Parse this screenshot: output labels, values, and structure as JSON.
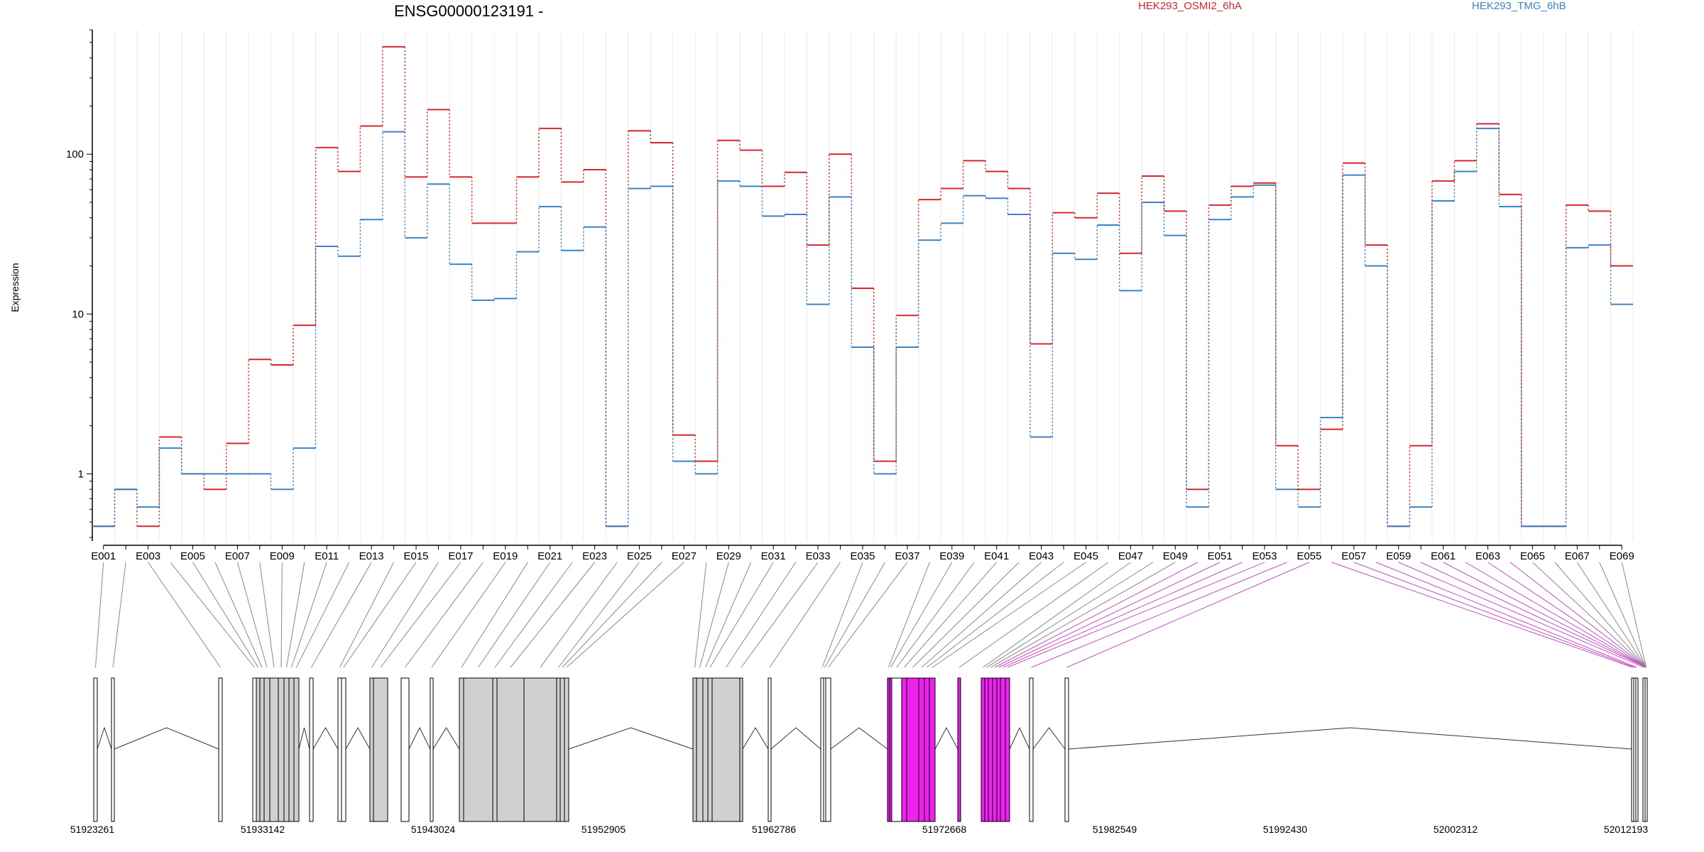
{
  "header": {
    "title": "ENSG00000123191 -",
    "legend": [
      {
        "label": "HEK293_OSMI2_6hA",
        "color": "#d7262b"
      },
      {
        "label": "HEK293_TMG_6hB",
        "color": "#3d82c4"
      }
    ]
  },
  "chart_data": {
    "type": "line",
    "title": "ENSG00000123191 -",
    "ylabel": "Expression",
    "yscale": "log",
    "ylim": [
      0.38,
      600
    ],
    "yticks": [
      1,
      10,
      100
    ],
    "ytick_labels": [
      "1",
      "10",
      "100"
    ],
    "grid": "vertical",
    "step": true,
    "categories": [
      "E001",
      "E002",
      "E003",
      "E004",
      "E005",
      "E006",
      "E007",
      "E008",
      "E009",
      "E010",
      "E011",
      "E012",
      "E013",
      "E014",
      "E015",
      "E016",
      "E017",
      "E018",
      "E019",
      "E020",
      "E021",
      "E022",
      "E023",
      "E024",
      "E025",
      "E026",
      "E027",
      "E028",
      "E029",
      "E030",
      "E031",
      "E032",
      "E033",
      "E034",
      "E035",
      "E036",
      "E037",
      "E038",
      "E039",
      "E040",
      "E041",
      "E042",
      "E043",
      "E044",
      "E045",
      "E046",
      "E047",
      "E048",
      "E049",
      "E050",
      "E051",
      "E052",
      "E053",
      "E054",
      "E055",
      "E056",
      "E057",
      "E058",
      "E059",
      "E060",
      "E061",
      "E062",
      "E063",
      "E064",
      "E065",
      "E066",
      "E067",
      "E068",
      "E069"
    ],
    "xtick_labels": [
      "E001",
      "E003",
      "E005",
      "E007",
      "E009",
      "E011",
      "E013",
      "E015",
      "E017",
      "E019",
      "E021",
      "E023",
      "E025",
      "E027",
      "E029",
      "E031",
      "E033",
      "E035",
      "E037",
      "E039",
      "E041",
      "E043",
      "E045",
      "E047",
      "E049",
      "E051",
      "E053",
      "E055",
      "E057",
      "E059",
      "E061",
      "E063",
      "E065",
      "E067",
      "E069"
    ],
    "series": [
      {
        "name": "HEK293_OSMI2_6hA",
        "color": "#d7262b",
        "values": [
          0.47,
          0.8,
          0.47,
          1.7,
          1.0,
          0.8,
          1.55,
          5.2,
          4.8,
          8.5,
          110,
          78,
          150,
          470,
          72,
          190,
          72,
          37,
          37,
          72,
          145,
          67,
          80,
          0.47,
          140,
          118,
          1.75,
          1.2,
          122,
          106,
          63,
          77,
          27,
          100,
          14.5,
          1.2,
          9.8,
          52,
          61,
          91,
          78,
          61,
          6.5,
          43,
          40,
          57,
          24,
          73,
          44,
          0.8,
          48,
          63,
          66,
          1.5,
          0.8,
          1.9,
          88,
          27,
          0.47,
          1.5,
          68,
          91,
          155,
          56,
          0.47,
          0.47,
          48,
          44,
          20
        ]
      },
      {
        "name": "HEK293_TMG_6hB",
        "color": "#3d82c4",
        "values": [
          0.47,
          0.8,
          0.62,
          1.45,
          1.0,
          1.0,
          1.0,
          1.0,
          0.8,
          1.45,
          26.5,
          23,
          39,
          138,
          30,
          65,
          20.5,
          12.2,
          12.5,
          24.5,
          47,
          25,
          35,
          0.47,
          61,
          63,
          1.2,
          1.0,
          68,
          63,
          41,
          42,
          11.5,
          54,
          6.2,
          1.0,
          6.2,
          29,
          37,
          55,
          53,
          42,
          1.7,
          24,
          22,
          36,
          14,
          50,
          31,
          0.62,
          39,
          54,
          64,
          0.8,
          0.62,
          2.25,
          74,
          20,
          0.47,
          0.62,
          51,
          78,
          145,
          47,
          0.47,
          0.47,
          26,
          27,
          11.5
        ]
      }
    ],
    "gene_model": {
      "xtick_labels": [
        "51923261",
        "51933142",
        "51943024",
        "51952905",
        "51962786",
        "51972668",
        "51982549",
        "51992430",
        "52002312",
        "52012193"
      ],
      "highlight_color": "#ee22ee",
      "highlighted_exons": [
        "E050",
        "E051",
        "E052",
        "E053",
        "E054",
        "E055",
        "E056",
        "E057",
        "E058",
        "E059",
        "E060",
        "E061",
        "E062",
        "E063",
        "E064"
      ]
    }
  }
}
